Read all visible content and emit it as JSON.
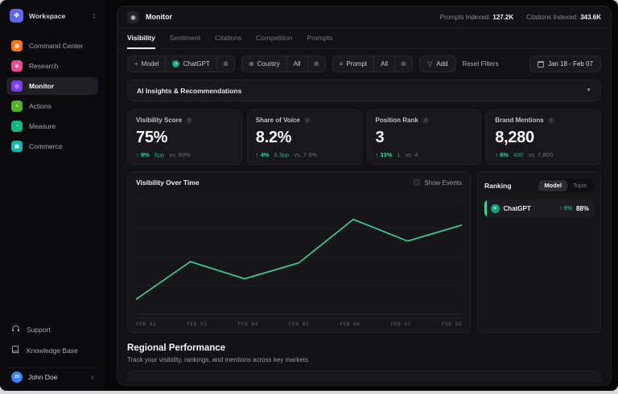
{
  "sidebar": {
    "workspace": {
      "label": "Workspace"
    },
    "items": [
      {
        "label": "Command Center",
        "color": "#f97316",
        "glyph": "▦",
        "active": false
      },
      {
        "label": "Research",
        "color": "#ec4899",
        "glyph": "◈",
        "active": false
      },
      {
        "label": "Monitor",
        "color": "#7c3aed",
        "glyph": "◎",
        "active": true
      },
      {
        "label": "Actions",
        "color": "#55b02b",
        "glyph": "+",
        "active": false
      },
      {
        "label": "Measure",
        "color": "#10b981",
        "glyph": "◔",
        "active": false
      },
      {
        "label": "Commerce",
        "color": "#14b8a6",
        "glyph": "▣",
        "active": false
      }
    ],
    "footer_items": [
      {
        "label": "Support"
      },
      {
        "label": "Knowledge Base"
      }
    ],
    "user": {
      "name": "John Doe",
      "initials": "JD"
    }
  },
  "header": {
    "title": "Monitor",
    "stats": [
      {
        "label": "Prompts Indexed:",
        "value": "127.2K"
      },
      {
        "label": "Citations Indexed:",
        "value": "343.6K"
      }
    ]
  },
  "tabs": [
    {
      "label": "Visibility",
      "active": true
    },
    {
      "label": "Sentiment",
      "active": false
    },
    {
      "label": "Citations",
      "active": false
    },
    {
      "label": "Competition",
      "active": false
    },
    {
      "label": "Prompts",
      "active": false
    }
  ],
  "filters": {
    "model": {
      "label": "Model",
      "value": "ChatGPT"
    },
    "country": {
      "label": "Country",
      "value": "All"
    },
    "prompt": {
      "label": "Prompt",
      "value": "All"
    },
    "add_label": "Add",
    "reset_label": "Reset Filters",
    "date_range": "Jan 18 - Feb 07"
  },
  "insights": {
    "title": "AI Insights & Recommendations"
  },
  "metrics": [
    {
      "label": "Visibility Score",
      "value": "75%",
      "delta_pct": "↑ 9%",
      "delta_abs": "6pp",
      "vs": "vs. 69%"
    },
    {
      "label": "Share of Voice",
      "value": "8.2%",
      "delta_pct": "↑ 4%",
      "delta_abs": "0.3pp",
      "vs": "vs. 7.9%"
    },
    {
      "label": "Position Rank",
      "value": "3",
      "delta_pct": "↑ 33%",
      "delta_abs": "1",
      "vs": "vs. 4"
    },
    {
      "label": "Brand Mentions",
      "value": "8,280",
      "delta_pct": "↑ 6%",
      "delta_abs": "480",
      "vs": "vs. 7,800"
    }
  ],
  "chart_section": {
    "title": "Visibility Over Time",
    "show_events_label": "Show Events"
  },
  "chart_data": {
    "type": "line",
    "title": "Visibility Over Time",
    "x": [
      "FEB 02",
      "FEB 03",
      "FEB 04",
      "FEB 05",
      "FEB 06",
      "FEB 07",
      "FEB 08"
    ],
    "values": [
      13,
      46,
      31,
      45,
      83,
      64,
      78
    ],
    "xlabel": "",
    "ylabel": "",
    "ylim": [
      0,
      100
    ],
    "grid": true,
    "legend": false,
    "line_color": "#34d399"
  },
  "ranking": {
    "title": "Ranking",
    "toggle": [
      {
        "label": "Model",
        "active": true
      },
      {
        "label": "Topic",
        "active": false
      }
    ],
    "rows": [
      {
        "name": "ChatGPT",
        "delta": "↑ 8%",
        "value": "88%"
      }
    ]
  },
  "regional": {
    "title": "Regional Performance",
    "subtitle": "Track your visibility, rankings, and mentions across key markets"
  },
  "colors": {
    "accent_green": "#34d399",
    "chatgpt_green": "#10a37f"
  }
}
